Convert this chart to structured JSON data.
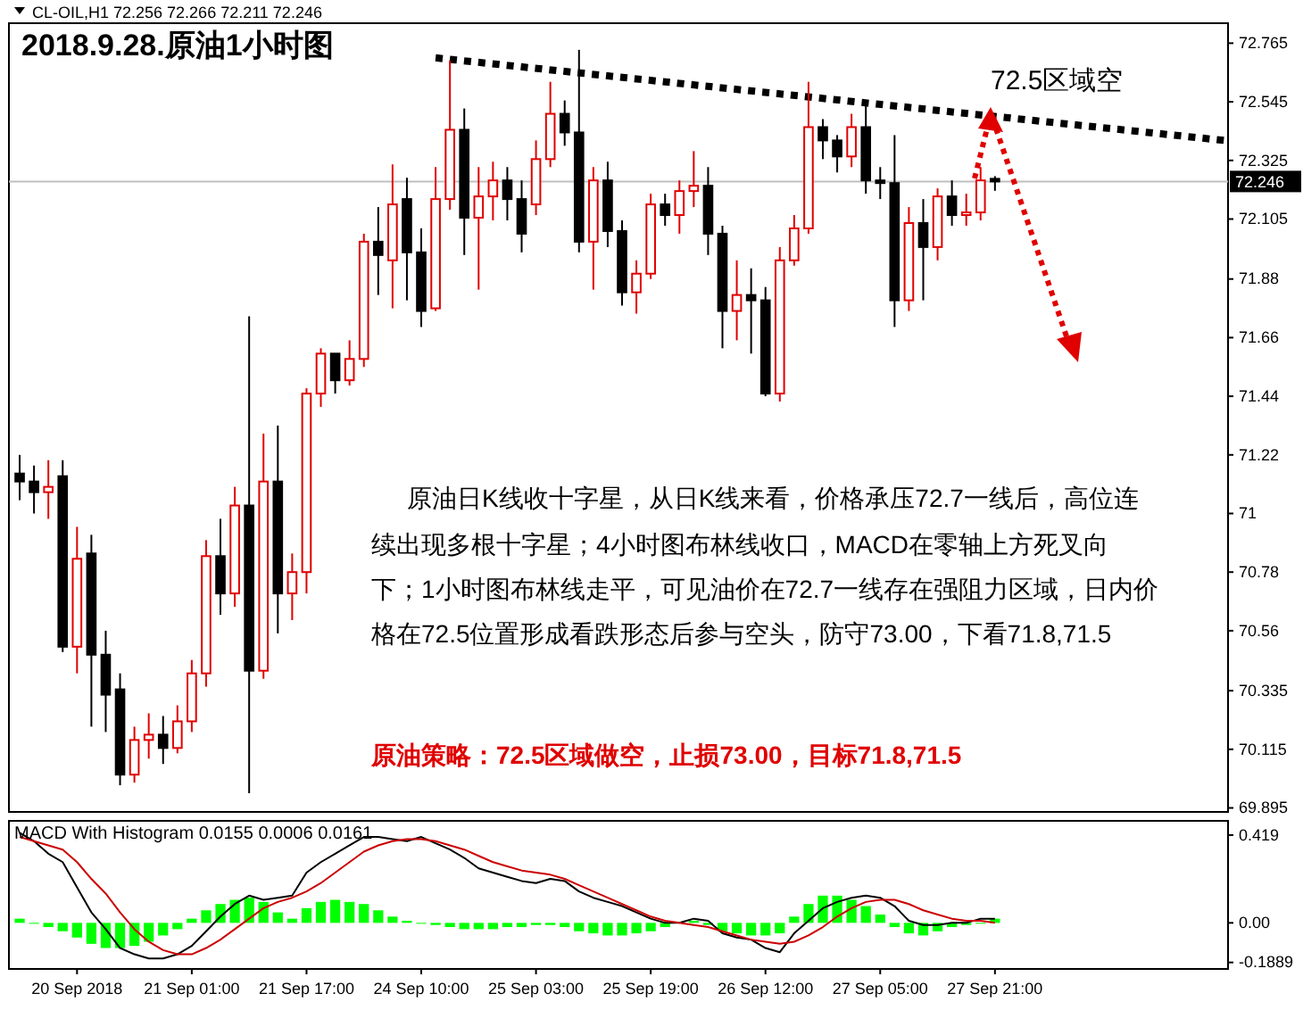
{
  "chart_data": [
    {
      "type": "candlestick",
      "title": "2018.9.28.原油1小时图",
      "subtitle": "CL-OIL,H1  72.256 72.266 72.211 72.246",
      "categories": [
        null,
        null,
        null,
        null,
        null,
        null,
        null,
        null,
        null,
        null,
        null,
        null,
        null,
        null,
        null,
        null,
        null,
        null,
        null,
        null,
        null,
        null,
        null,
        null,
        null,
        null,
        null,
        null,
        null,
        null,
        null,
        null,
        null,
        null,
        null,
        null,
        null,
        null,
        null,
        null,
        null,
        null,
        null,
        null,
        null,
        null,
        null,
        null,
        null,
        null,
        null,
        null,
        null,
        null,
        null,
        null,
        null,
        null,
        null,
        null,
        null,
        null,
        null,
        null,
        null,
        null,
        null,
        null,
        null,
        null,
        null,
        null,
        null,
        null,
        null,
        null,
        null,
        null,
        null,
        null,
        null,
        null,
        null,
        null,
        null
      ],
      "ohlc": [
        [
          71.15,
          71.22,
          71.05,
          71.12
        ],
        [
          71.12,
          71.18,
          71.0,
          71.08
        ],
        [
          71.08,
          71.2,
          70.98,
          71.1
        ],
        [
          71.14,
          71.2,
          70.48,
          70.5
        ],
        [
          70.5,
          70.95,
          70.4,
          70.83
        ],
        [
          70.85,
          70.92,
          70.2,
          70.47
        ],
        [
          70.47,
          70.56,
          70.18,
          70.32
        ],
        [
          70.34,
          70.4,
          69.98,
          70.02
        ],
        [
          70.02,
          70.2,
          69.99,
          70.15
        ],
        [
          70.15,
          70.25,
          70.08,
          70.17
        ],
        [
          70.17,
          70.24,
          70.06,
          70.12
        ],
        [
          70.12,
          70.28,
          70.1,
          70.22
        ],
        [
          70.22,
          70.45,
          70.18,
          70.4
        ],
        [
          70.4,
          70.9,
          70.35,
          70.84
        ],
        [
          70.84,
          70.98,
          70.62,
          70.7
        ],
        [
          70.7,
          71.1,
          70.65,
          71.03
        ],
        [
          71.03,
          71.74,
          69.95,
          70.41
        ],
        [
          70.41,
          71.3,
          70.38,
          71.12
        ],
        [
          71.12,
          71.33,
          70.55,
          70.7
        ],
        [
          70.7,
          70.85,
          70.6,
          70.78
        ],
        [
          70.78,
          71.47,
          70.7,
          71.45
        ],
        [
          71.45,
          71.62,
          71.4,
          71.6
        ],
        [
          71.6,
          71.6,
          71.45,
          71.5
        ],
        [
          71.5,
          71.65,
          71.48,
          71.58
        ],
        [
          71.58,
          72.05,
          71.55,
          72.02
        ],
        [
          72.02,
          72.15,
          71.82,
          71.97
        ],
        [
          71.95,
          72.31,
          71.77,
          72.16
        ],
        [
          72.18,
          72.26,
          71.8,
          71.98
        ],
        [
          71.98,
          72.07,
          71.7,
          71.76
        ],
        [
          71.77,
          72.3,
          71.76,
          72.18
        ],
        [
          72.18,
          72.7,
          72.14,
          72.44
        ],
        [
          72.44,
          72.52,
          71.97,
          72.11
        ],
        [
          72.11,
          72.3,
          71.84,
          72.19
        ],
        [
          72.19,
          72.32,
          72.1,
          72.25
        ],
        [
          72.25,
          72.3,
          72.1,
          72.18
        ],
        [
          72.18,
          72.25,
          71.98,
          72.05
        ],
        [
          72.16,
          72.4,
          72.12,
          72.33
        ],
        [
          72.33,
          72.62,
          72.3,
          72.5
        ],
        [
          72.5,
          72.55,
          72.38,
          72.43
        ],
        [
          72.43,
          72.74,
          71.98,
          72.02
        ],
        [
          72.02,
          72.3,
          71.84,
          72.25
        ],
        [
          72.25,
          72.32,
          72.0,
          72.06
        ],
        [
          72.06,
          72.1,
          71.78,
          71.83
        ],
        [
          71.83,
          71.95,
          71.75,
          71.9
        ],
        [
          71.9,
          72.2,
          71.88,
          72.16
        ],
        [
          72.16,
          72.2,
          72.08,
          72.12
        ],
        [
          72.12,
          72.25,
          72.05,
          72.21
        ],
        [
          72.21,
          72.36,
          72.15,
          72.23
        ],
        [
          72.23,
          72.3,
          71.97,
          72.05
        ],
        [
          72.05,
          72.08,
          71.62,
          71.76
        ],
        [
          71.76,
          71.95,
          71.65,
          71.82
        ],
        [
          71.82,
          71.92,
          71.6,
          71.8
        ],
        [
          71.8,
          71.85,
          71.44,
          71.45
        ],
        [
          71.45,
          72.0,
          71.42,
          71.95
        ],
        [
          71.95,
          72.12,
          71.93,
          72.07
        ],
        [
          72.07,
          72.62,
          72.05,
          72.45
        ],
        [
          72.45,
          72.48,
          72.33,
          72.4
        ],
        [
          72.4,
          72.42,
          72.28,
          72.34
        ],
        [
          72.34,
          72.5,
          72.3,
          72.45
        ],
        [
          72.45,
          72.55,
          72.2,
          72.25
        ],
        [
          72.25,
          72.3,
          72.18,
          72.24
        ],
        [
          72.24,
          72.42,
          71.7,
          71.8
        ],
        [
          71.8,
          72.15,
          71.76,
          72.09
        ],
        [
          72.09,
          72.18,
          71.8,
          72.0
        ],
        [
          72.0,
          72.22,
          71.95,
          72.19
        ],
        [
          72.19,
          72.25,
          72.08,
          72.12
        ],
        [
          72.12,
          72.2,
          72.08,
          72.13
        ],
        [
          72.13,
          72.3,
          72.1,
          72.25
        ],
        [
          72.256,
          72.266,
          72.211,
          72.246
        ],
        null,
        null,
        null,
        null,
        null,
        null,
        null,
        null,
        null,
        null,
        null,
        null,
        null,
        null,
        null,
        null
      ],
      "series": [
        {
          "type": "line",
          "values": [
            null,
            null,
            null,
            null,
            null,
            null,
            null,
            null,
            null,
            null,
            null,
            null,
            null,
            null,
            null,
            null,
            null,
            null,
            null,
            null,
            null,
            null,
            null,
            null,
            null,
            null,
            null,
            null,
            null,
            72.71,
            null,
            null,
            null,
            null,
            null,
            null,
            null,
            null,
            null,
            null,
            null,
            null,
            null,
            null,
            null,
            null,
            null,
            null,
            null,
            null,
            null,
            null,
            null,
            null,
            null,
            null,
            null,
            null,
            null,
            null,
            null,
            null,
            null,
            null,
            null,
            null,
            null,
            null,
            null,
            null,
            null,
            null,
            null,
            null,
            null,
            null,
            null,
            null,
            null,
            null,
            null,
            null,
            null,
            null,
            72.4
          ],
          "color": "#000000",
          "line_style": "dotted"
        }
      ],
      "ylim": [
        69.88,
        72.84
      ],
      "yticks": [
        69.895,
        70.115,
        70.335,
        70.56,
        70.78,
        71.0,
        71.22,
        71.44,
        71.66,
        71.88,
        72.105,
        72.325,
        72.545,
        72.765
      ],
      "tick_labels": "y",
      "ref_lines": [
        {
          "axis": "y",
          "value": 72.246,
          "label": "72.246",
          "color": "#c0c0c0"
        }
      ],
      "annotations": [
        "72.5区域空",
        "原油日K线收十字星，从日K线来看，价格承压72.7一线后，高位连",
        "续出现多根十字星；4小时图布林线收口，MACD在零轴上方死叉向",
        "下；1小时图布林线走平，可见油价在72.7一线存在强阻力区域，日内价",
        "格在72.5位置形成看跌形态后参与空头，防守73.00，下看71.8,71.5",
        "原油策略：72.5区域做空，止损73.00，目标71.8,71.5"
      ]
    },
    {
      "type": "bar",
      "title": "MACD With Histogram 0.0155 0.0006 0.0161",
      "categories": [
        null,
        null,
        null,
        null,
        "20 Sep 2018",
        null,
        null,
        null,
        null,
        null,
        null,
        null,
        "21 Sep 01:00",
        null,
        null,
        null,
        null,
        null,
        null,
        null,
        "21 Sep 17:00",
        null,
        null,
        null,
        null,
        null,
        null,
        null,
        "24 Sep 10:00",
        null,
        null,
        null,
        null,
        null,
        null,
        null,
        "25 Sep 03:00",
        null,
        null,
        null,
        null,
        null,
        null,
        null,
        "25 Sep 19:00",
        null,
        null,
        null,
        null,
        null,
        null,
        null,
        "26 Sep 12:00",
        null,
        null,
        null,
        null,
        null,
        null,
        null,
        "27 Sep 05:00",
        null,
        null,
        null,
        null,
        null,
        null,
        null,
        "27 Sep 21:00",
        null,
        null,
        null,
        null,
        null,
        null,
        null,
        null,
        null,
        null,
        null,
        null,
        null,
        null,
        null,
        null
      ],
      "series": [
        {
          "type": "bar",
          "color": "#00ff00",
          "values": [
            0.02,
            0.0,
            -0.02,
            -0.04,
            -0.07,
            -0.1,
            -0.12,
            -0.12,
            -0.11,
            -0.09,
            -0.06,
            -0.03,
            0.02,
            0.06,
            0.09,
            0.11,
            0.12,
            0.1,
            0.05,
            0.02,
            0.07,
            0.1,
            0.11,
            0.1,
            0.09,
            0.06,
            0.03,
            0.01,
            0.0,
            -0.01,
            -0.02,
            -0.03,
            -0.03,
            -0.03,
            -0.02,
            -0.02,
            -0.01,
            -0.01,
            -0.02,
            -0.04,
            -0.05,
            -0.06,
            -0.06,
            -0.05,
            -0.04,
            -0.02,
            null,
            0.01,
            -0.01,
            -0.04,
            -0.05,
            -0.06,
            -0.06,
            -0.05,
            0.03,
            0.09,
            0.13,
            0.13,
            0.11,
            0.08,
            0.04,
            -0.02,
            -0.05,
            -0.06,
            -0.04,
            -0.02,
            -0.01,
            0.0,
            0.02,
            null,
            null,
            null,
            null,
            null,
            null,
            null,
            null,
            null,
            null,
            null,
            null,
            null,
            null,
            null,
            null
          ]
        },
        {
          "type": "line",
          "color": "#000000",
          "values": [
            0.43,
            0.39,
            0.33,
            0.29,
            0.17,
            0.05,
            -0.03,
            -0.12,
            -0.15,
            -0.17,
            -0.17,
            -0.15,
            -0.11,
            -0.04,
            0.03,
            0.09,
            0.13,
            0.11,
            0.12,
            0.13,
            0.24,
            0.29,
            0.33,
            0.37,
            0.41,
            0.41,
            0.4,
            0.39,
            0.41,
            0.38,
            0.35,
            0.31,
            0.26,
            0.24,
            0.22,
            0.2,
            0.19,
            0.21,
            0.2,
            0.15,
            0.12,
            0.1,
            0.08,
            0.05,
            0.02,
            0.0,
            0.0,
            0.02,
            0.01,
            -0.05,
            -0.07,
            -0.08,
            -0.12,
            -0.14,
            -0.05,
            0.01,
            0.07,
            0.1,
            0.12,
            0.13,
            0.12,
            0.08,
            0.01,
            -0.01,
            -0.01,
            0.0,
            0.0,
            0.02,
            0.02,
            null,
            null,
            null,
            null,
            null,
            null,
            null,
            null,
            null,
            null,
            null,
            null,
            null,
            null,
            null,
            null
          ]
        },
        {
          "type": "line",
          "color": "#cc0000",
          "values": [
            0.41,
            0.39,
            0.37,
            0.35,
            0.29,
            0.21,
            0.14,
            0.05,
            -0.03,
            -0.09,
            -0.13,
            -0.15,
            -0.15,
            -0.12,
            -0.08,
            -0.03,
            0.02,
            0.07,
            0.1,
            0.12,
            0.15,
            0.19,
            0.24,
            0.29,
            0.34,
            0.37,
            0.39,
            0.4,
            0.4,
            0.39,
            0.37,
            0.35,
            0.32,
            0.29,
            0.27,
            0.25,
            0.24,
            0.23,
            0.21,
            0.18,
            0.15,
            0.12,
            0.09,
            0.06,
            0.03,
            0.01,
            0.0,
            -0.01,
            -0.02,
            -0.04,
            -0.06,
            -0.08,
            -0.09,
            -0.1,
            -0.09,
            -0.06,
            -0.02,
            0.03,
            0.07,
            0.1,
            0.11,
            0.11,
            0.09,
            0.06,
            0.04,
            0.02,
            0.01,
            0.01,
            0.0,
            null,
            null,
            null,
            null,
            null,
            null,
            null,
            null,
            null,
            null,
            null,
            null,
            null,
            null,
            null,
            null
          ]
        }
      ],
      "ylim": [
        -0.22,
        0.487
      ],
      "yticks": [
        {
          "value": -0.1889,
          "label": "-0.1889"
        },
        {
          "value": 0,
          "label": "0.00"
        },
        {
          "value": 0.419,
          "label": "0.419"
        }
      ]
    }
  ]
}
